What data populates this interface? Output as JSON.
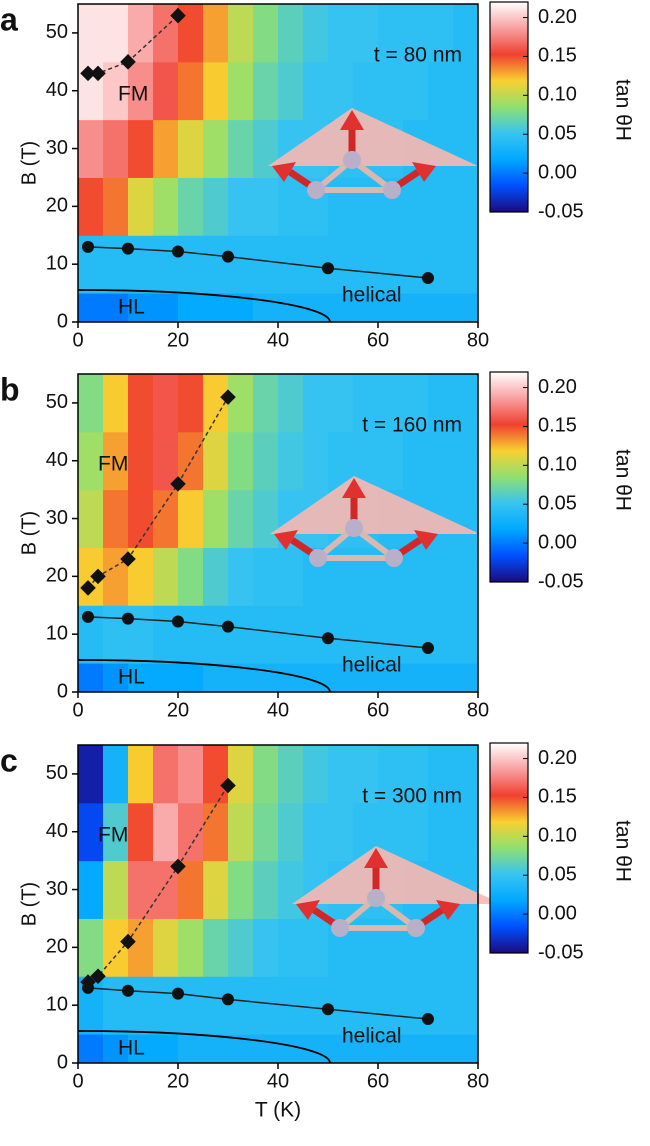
{
  "chart_data": [
    {
      "type": "heatmap",
      "panel_label": "a",
      "annotation": "t = 80 nm",
      "y_label": "B (T)",
      "xlim": [
        0,
        80
      ],
      "ylim": [
        0,
        55
      ],
      "xticks": [
        0,
        20,
        40,
        60,
        80
      ],
      "yticks": [
        0,
        10,
        20,
        30,
        40,
        50
      ],
      "region_labels": [
        "FM",
        "HL",
        "helical"
      ],
      "colorbar": {
        "label": "tan θH",
        "lim": [
          -0.05,
          0.22
        ],
        "ticks": [
          -0.05,
          {
            "value": 0,
            "label": "0.00"
          },
          0.05,
          {
            "value": 0.1,
            "label": "0.10"
          },
          0.15,
          {
            "value": 0.2,
            "label": "0.20"
          }
        ]
      },
      "colormap": [
        "#1a0a80",
        "#0050ff",
        "#00a8ff",
        "#38c4f0",
        "#90e070",
        "#f8d030",
        "#f04030",
        "#f8a0a0",
        "#ffffff"
      ],
      "heatmap": {
        "x_edges": [
          0,
          5,
          10,
          15,
          20,
          25,
          30,
          35,
          40,
          45,
          50,
          55,
          60,
          65,
          70,
          75,
          80
        ],
        "y_edges": [
          0,
          5,
          15,
          25,
          35,
          45,
          55
        ],
        "values": [
          [
            0.0,
            0.0,
            0.01,
            0.01,
            0.02,
            0.02,
            0.02,
            0.03,
            0.03,
            0.03,
            0.03,
            0.03,
            0.03,
            0.03,
            0.03,
            0.03
          ],
          [
            0.04,
            0.04,
            0.04,
            0.04,
            0.04,
            0.04,
            0.04,
            0.04,
            0.04,
            0.04,
            0.04,
            0.04,
            0.04,
            0.04,
            0.04,
            0.04
          ],
          [
            0.15,
            0.14,
            0.11,
            0.09,
            0.07,
            0.06,
            0.05,
            0.05,
            0.045,
            0.045,
            0.04,
            0.04,
            0.04,
            0.04,
            0.04,
            0.04
          ],
          [
            0.18,
            0.17,
            0.15,
            0.13,
            0.11,
            0.09,
            0.07,
            0.06,
            0.05,
            0.05,
            0.045,
            0.045,
            0.045,
            0.04,
            0.04,
            0.04
          ],
          [
            0.21,
            0.2,
            0.18,
            0.16,
            0.14,
            0.12,
            0.09,
            0.07,
            0.06,
            0.05,
            0.05,
            0.045,
            0.045,
            0.045,
            0.04,
            0.04
          ],
          [
            0.21,
            0.21,
            0.19,
            0.17,
            0.15,
            0.13,
            0.1,
            0.08,
            0.065,
            0.055,
            0.05,
            0.05,
            0.045,
            0.045,
            0.045,
            0.04
          ]
        ]
      },
      "fm_boundary": {
        "x": [
          2,
          4,
          10,
          20
        ],
        "y": [
          43,
          43,
          45,
          53
        ]
      },
      "helical_boundary": {
        "x": [
          2,
          10,
          20,
          30,
          50,
          70
        ],
        "y": [
          13,
          12.7,
          12.2,
          11.3,
          9.3,
          7.6
        ]
      }
    },
    {
      "type": "heatmap",
      "panel_label": "b",
      "annotation": "t = 160 nm",
      "y_label": "B (T)",
      "xlim": [
        0,
        80
      ],
      "ylim": [
        0,
        55
      ],
      "xticks": [
        0,
        20,
        40,
        60,
        80
      ],
      "yticks": [
        0,
        10,
        20,
        30,
        40,
        50
      ],
      "region_labels": [
        "FM",
        "HL",
        "helical"
      ],
      "colorbar": {
        "label": "tan θH",
        "lim": [
          -0.05,
          0.22
        ],
        "ticks": [
          -0.05,
          {
            "value": 0,
            "label": "0.00"
          },
          0.05,
          {
            "value": 0.1,
            "label": "0.10"
          },
          0.15,
          {
            "value": 0.2,
            "label": "0.20"
          }
        ]
      },
      "colormap": [
        "#1a0a80",
        "#0050ff",
        "#00a8ff",
        "#38c4f0",
        "#90e070",
        "#f8d030",
        "#f04030",
        "#f8a0a0",
        "#ffffff"
      ],
      "heatmap": {
        "x_edges": [
          0,
          5,
          10,
          15,
          20,
          25,
          30,
          35,
          40,
          45,
          50,
          55,
          60,
          65,
          70,
          75,
          80
        ],
        "y_edges": [
          0,
          5,
          15,
          25,
          35,
          45,
          55
        ],
        "values": [
          [
            0.0,
            0.01,
            0.02,
            0.02,
            0.02,
            0.03,
            0.03,
            0.03,
            0.03,
            0.03,
            0.03,
            0.03,
            0.03,
            0.03,
            0.03,
            0.03
          ],
          [
            0.04,
            0.045,
            0.045,
            0.04,
            0.04,
            0.04,
            0.04,
            0.04,
            0.04,
            0.04,
            0.04,
            0.04,
            0.04,
            0.04,
            0.04,
            0.04
          ],
          [
            0.12,
            0.13,
            0.12,
            0.1,
            0.08,
            0.06,
            0.05,
            0.045,
            0.045,
            0.04,
            0.04,
            0.04,
            0.04,
            0.04,
            0.04,
            0.04
          ],
          [
            0.1,
            0.14,
            0.15,
            0.14,
            0.12,
            0.09,
            0.07,
            0.06,
            0.05,
            0.05,
            0.045,
            0.045,
            0.04,
            0.04,
            0.04,
            0.04
          ],
          [
            0.09,
            0.13,
            0.15,
            0.16,
            0.14,
            0.11,
            0.08,
            0.065,
            0.055,
            0.05,
            0.045,
            0.045,
            0.045,
            0.04,
            0.04,
            0.04
          ],
          [
            0.08,
            0.12,
            0.15,
            0.16,
            0.15,
            0.12,
            0.09,
            0.07,
            0.06,
            0.05,
            0.05,
            0.045,
            0.045,
            0.045,
            0.04,
            0.04
          ]
        ]
      },
      "fm_boundary": {
        "x": [
          2,
          4,
          10,
          20,
          30
        ],
        "y": [
          18,
          20,
          23,
          36,
          51
        ]
      },
      "helical_boundary": {
        "x": [
          2,
          10,
          20,
          30,
          50,
          70
        ],
        "y": [
          13,
          12.7,
          12.2,
          11.3,
          9.3,
          7.6
        ]
      }
    },
    {
      "type": "heatmap",
      "panel_label": "c",
      "annotation": "t = 300 nm",
      "y_label": "B (T)",
      "x_label": "T (K)",
      "xlim": [
        0,
        80
      ],
      "ylim": [
        0,
        55
      ],
      "xticks": [
        0,
        20,
        40,
        60,
        80
      ],
      "yticks": [
        0,
        10,
        20,
        30,
        40,
        50
      ],
      "region_labels": [
        "FM",
        "HL",
        "helical"
      ],
      "colorbar": {
        "label": "tan θH",
        "lim": [
          -0.05,
          0.22
        ],
        "ticks": [
          -0.05,
          {
            "value": 0,
            "label": "0.00"
          },
          0.05,
          {
            "value": 0.1,
            "label": "0.10"
          },
          0.15,
          {
            "value": 0.2,
            "label": "0.20"
          }
        ]
      },
      "colormap": [
        "#1a0a80",
        "#0050ff",
        "#00a8ff",
        "#38c4f0",
        "#90e070",
        "#f8d030",
        "#f04030",
        "#f8a0a0",
        "#ffffff"
      ],
      "heatmap": {
        "x_edges": [
          0,
          5,
          10,
          15,
          20,
          25,
          30,
          35,
          40,
          45,
          50,
          55,
          60,
          65,
          70,
          75,
          80
        ],
        "y_edges": [
          0,
          5,
          15,
          25,
          35,
          45,
          55
        ],
        "values": [
          [
            0.0,
            0.01,
            0.02,
            0.02,
            0.03,
            0.03,
            0.03,
            0.03,
            0.03,
            0.03,
            0.03,
            0.03,
            0.03,
            0.03,
            0.03,
            0.03
          ],
          [
            0.03,
            0.04,
            0.04,
            0.04,
            0.04,
            0.04,
            0.04,
            0.04,
            0.04,
            0.04,
            0.04,
            0.04,
            0.04,
            0.04,
            0.04,
            0.04
          ],
          [
            0.08,
            0.12,
            0.13,
            0.11,
            0.09,
            0.07,
            0.06,
            0.05,
            0.045,
            0.045,
            0.04,
            0.04,
            0.04,
            0.04,
            0.04,
            0.04
          ],
          [
            0.02,
            0.1,
            0.17,
            0.17,
            0.14,
            0.11,
            0.08,
            0.065,
            0.055,
            0.05,
            0.045,
            0.045,
            0.045,
            0.04,
            0.04,
            0.04
          ],
          [
            -0.02,
            0.06,
            0.15,
            0.19,
            0.17,
            0.14,
            0.1,
            0.075,
            0.06,
            0.05,
            0.05,
            0.045,
            0.045,
            0.045,
            0.04,
            0.04
          ],
          [
            -0.04,
            0.03,
            0.12,
            0.17,
            0.18,
            0.15,
            0.11,
            0.08,
            0.065,
            0.055,
            0.05,
            0.05,
            0.045,
            0.045,
            0.04,
            0.04
          ]
        ]
      },
      "fm_boundary": {
        "x": [
          2,
          4,
          10,
          20,
          30
        ],
        "y": [
          14,
          15,
          21,
          34,
          48
        ]
      },
      "helical_boundary": {
        "x": [
          2,
          10,
          20,
          30,
          50,
          70
        ],
        "y": [
          13,
          12.5,
          12,
          11,
          9.3,
          7.6
        ]
      }
    }
  ]
}
